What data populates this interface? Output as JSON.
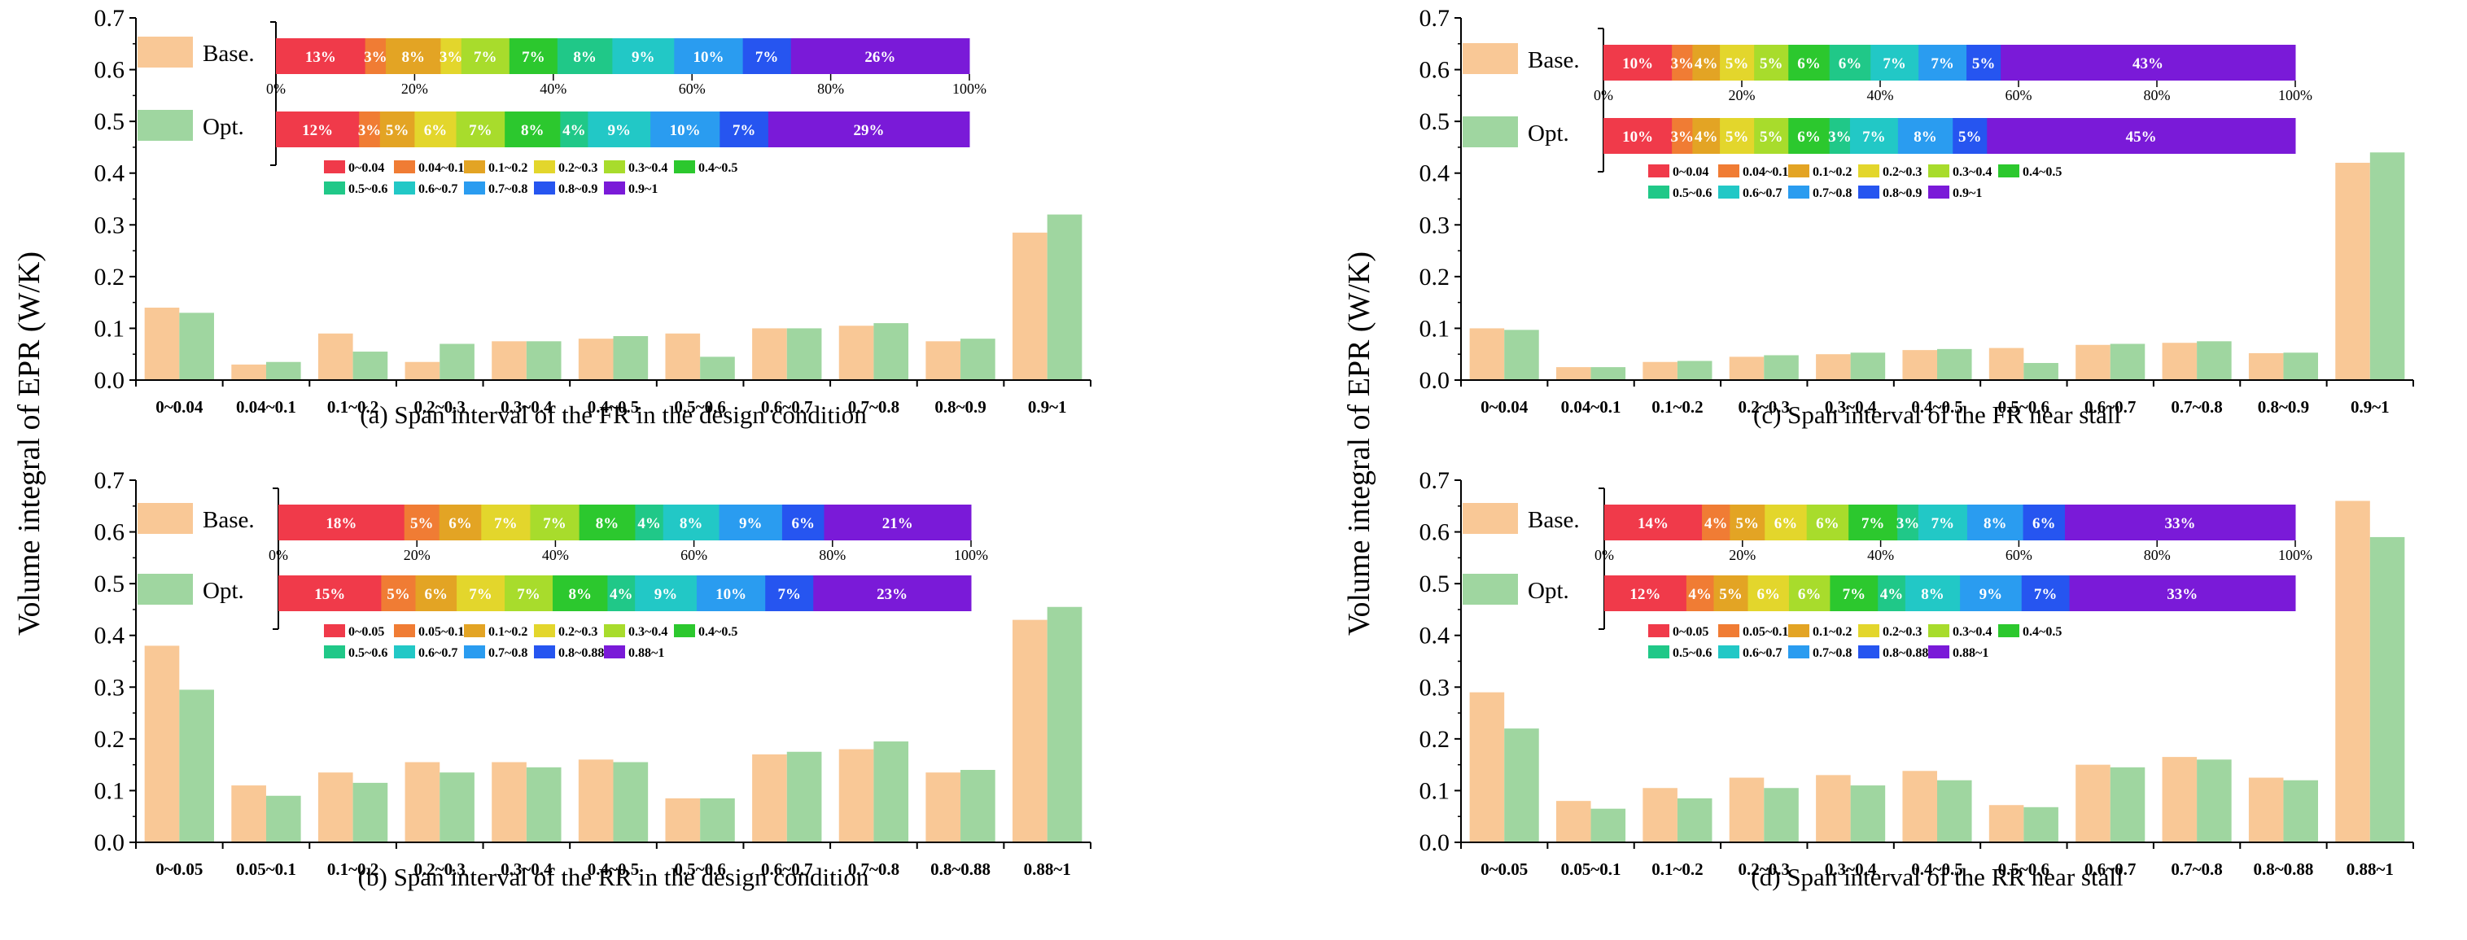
{
  "figure": {
    "ylabel": "Volume integral of EPR (W/K)",
    "legend": {
      "base_label": "Base.",
      "opt_label": "Opt."
    }
  },
  "colors": {
    "base": "#f9c896",
    "opt": "#9fd6a0",
    "segments": [
      "#f03a4a",
      "#f07c34",
      "#e3a424",
      "#e3d62c",
      "#a8dc2c",
      "#2cc82e",
      "#20c888",
      "#22c8c6",
      "#2a9cf0",
      "#2655f0",
      "#7a1ad8"
    ]
  },
  "chart_data": [
    {
      "type": "bar",
      "title": "(a) Span interval of the FR in the design condition",
      "categories": [
        "0~0.04",
        "0.04~0.1",
        "0.1~0.2",
        "0.2~0.3",
        "0.3~0.4",
        "0.4~0.5",
        "0.5~0.6",
        "0.6~0.7",
        "0.7~0.8",
        "0.8~0.9",
        "0.9~1"
      ],
      "series": [
        {
          "name": "Base.",
          "values": [
            0.14,
            0.03,
            0.09,
            0.035,
            0.075,
            0.08,
            0.09,
            0.1,
            0.105,
            0.075,
            0.285
          ]
        },
        {
          "name": "Opt.",
          "values": [
            0.13,
            0.035,
            0.055,
            0.07,
            0.075,
            0.085,
            0.045,
            0.1,
            0.11,
            0.08,
            0.32
          ]
        }
      ],
      "ylim": [
        0,
        0.7
      ],
      "yticks": [
        "0.0",
        "0.1",
        "0.2",
        "0.3",
        "0.4",
        "0.5",
        "0.6",
        "0.7"
      ],
      "stacked_bars": {
        "axis_ticks": [
          "0%",
          "20%",
          "40%",
          "60%",
          "80%",
          "100%"
        ],
        "base": {
          "values": [
            13,
            3,
            8,
            3,
            7,
            7,
            8,
            9,
            10,
            7,
            26
          ],
          "labels": [
            "13%",
            "3%",
            "8%",
            "3%",
            "7%",
            "7%",
            "8%",
            "9%",
            "10%",
            "7%",
            "26%"
          ]
        },
        "opt": {
          "values": [
            12,
            3,
            5,
            6,
            7,
            8,
            4,
            9,
            10,
            7,
            29
          ],
          "labels": [
            "12%",
            "3%",
            "5%",
            "6%",
            "7%",
            "8%",
            "4%",
            "9%",
            "10%",
            "7%",
            "29%"
          ]
        },
        "legend": [
          "0~0.04",
          "0.04~0.1",
          "0.1~0.2",
          "0.2~0.3",
          "0.3~0.4",
          "0.4~0.5",
          "0.5~0.6",
          "0.6~0.7",
          "0.7~0.8",
          "0.8~0.9",
          "0.9~1"
        ]
      }
    },
    {
      "type": "bar",
      "title": "(c) Span interval of the FR near stall",
      "categories": [
        "0~0.04",
        "0.04~0.1",
        "0.1~0.2",
        "0.2~0.3",
        "0.3~0.4",
        "0.4~0.5",
        "0.5~0.6",
        "0.6~0.7",
        "0.7~0.8",
        "0.8~0.9",
        "0.9~1"
      ],
      "series": [
        {
          "name": "Base.",
          "values": [
            0.1,
            0.025,
            0.035,
            0.045,
            0.05,
            0.058,
            0.062,
            0.068,
            0.072,
            0.052,
            0.42
          ]
        },
        {
          "name": "Opt.",
          "values": [
            0.097,
            0.025,
            0.037,
            0.048,
            0.053,
            0.06,
            0.033,
            0.07,
            0.075,
            0.053,
            0.44
          ]
        }
      ],
      "ylim": [
        0,
        0.7
      ],
      "yticks": [
        "0.0",
        "0.1",
        "0.2",
        "0.3",
        "0.4",
        "0.5",
        "0.6",
        "0.7"
      ],
      "stacked_bars": {
        "axis_ticks": [
          "0%",
          "20%",
          "40%",
          "60%",
          "80%",
          "100%"
        ],
        "base": {
          "values": [
            10,
            3,
            4,
            5,
            5,
            6,
            6,
            7,
            7,
            5,
            43
          ],
          "labels": [
            "10%",
            "3%",
            "4%",
            "5%",
            "5%",
            "6%",
            "6%",
            "7%",
            "7%",
            "5%",
            "43%"
          ]
        },
        "opt": {
          "values": [
            10,
            3,
            4,
            5,
            5,
            6,
            3,
            7,
            8,
            5,
            45
          ],
          "labels": [
            "10%",
            "3%",
            "4%",
            "5%",
            "5%",
            "6%",
            "3%",
            "7%",
            "8%",
            "5%",
            "45%"
          ]
        },
        "legend": [
          "0~0.04",
          "0.04~0.1",
          "0.1~0.2",
          "0.2~0.3",
          "0.3~0.4",
          "0.4~0.5",
          "0.5~0.6",
          "0.6~0.7",
          "0.7~0.8",
          "0.8~0.9",
          "0.9~1"
        ]
      }
    },
    {
      "type": "bar",
      "title": "(b) Span interval of the RR in the design condition",
      "categories": [
        "0~0.05",
        "0.05~0.1",
        "0.1~0.2",
        "0.2~0.3",
        "0.3~0.4",
        "0.4~0.5",
        "0.5~0.6",
        "0.6~0.7",
        "0.7~0.8",
        "0.8~0.88",
        "0.88~1"
      ],
      "series": [
        {
          "name": "Base.",
          "values": [
            0.38,
            0.11,
            0.135,
            0.155,
            0.155,
            0.16,
            0.085,
            0.17,
            0.18,
            0.135,
            0.43
          ]
        },
        {
          "name": "Opt.",
          "values": [
            0.295,
            0.09,
            0.115,
            0.135,
            0.145,
            0.155,
            0.085,
            0.175,
            0.195,
            0.14,
            0.455
          ]
        }
      ],
      "ylim": [
        0,
        0.7
      ],
      "yticks": [
        "0.0",
        "0.1",
        "0.2",
        "0.3",
        "0.4",
        "0.5",
        "0.6",
        "0.7"
      ],
      "stacked_bars": {
        "axis_ticks": [
          "0%",
          "20%",
          "40%",
          "60%",
          "80%",
          "100%"
        ],
        "base": {
          "values": [
            18,
            5,
            6,
            7,
            7,
            8,
            4,
            8,
            9,
            6,
            21
          ],
          "labels": [
            "18%",
            "5%",
            "6%",
            "7%",
            "7%",
            "8%",
            "4%",
            "8%",
            "9%",
            "6%",
            "21%"
          ]
        },
        "opt": {
          "values": [
            15,
            5,
            6,
            7,
            7,
            8,
            4,
            9,
            10,
            7,
            23
          ],
          "labels": [
            "15%",
            "5%",
            "6%",
            "7%",
            "7%",
            "8%",
            "4%",
            "9%",
            "10%",
            "7%",
            "23%"
          ]
        },
        "legend": [
          "0~0.05",
          "0.05~0.1",
          "0.1~0.2",
          "0.2~0.3",
          "0.3~0.4",
          "0.4~0.5",
          "0.5~0.6",
          "0.6~0.7",
          "0.7~0.8",
          "0.8~0.88",
          "0.88~1"
        ]
      }
    },
    {
      "type": "bar",
      "title": "(d) Span interval of the RR near stall",
      "categories": [
        "0~0.05",
        "0.05~0.1",
        "0.1~0.2",
        "0.2~0.3",
        "0.3~0.4",
        "0.4~0.5",
        "0.5~0.6",
        "0.6~0.7",
        "0.7~0.8",
        "0.8~0.88",
        "0.88~1"
      ],
      "series": [
        {
          "name": "Base.",
          "values": [
            0.29,
            0.08,
            0.105,
            0.125,
            0.13,
            0.138,
            0.072,
            0.15,
            0.165,
            0.125,
            0.66
          ]
        },
        {
          "name": "Opt.",
          "values": [
            0.22,
            0.065,
            0.085,
            0.105,
            0.11,
            0.12,
            0.068,
            0.145,
            0.16,
            0.12,
            0.59
          ]
        }
      ],
      "ylim": [
        0,
        0.7
      ],
      "yticks": [
        "0.0",
        "0.1",
        "0.2",
        "0.3",
        "0.4",
        "0.5",
        "0.6",
        "0.7"
      ],
      "stacked_bars": {
        "axis_ticks": [
          "0%",
          "20%",
          "40%",
          "60%",
          "80%",
          "100%"
        ],
        "base": {
          "values": [
            14,
            4,
            5,
            6,
            6,
            7,
            3,
            7,
            8,
            6,
            33
          ],
          "labels": [
            "14%",
            "4%",
            "5%",
            "6%",
            "6%",
            "7%",
            "3%",
            "7%",
            "8%",
            "6%",
            "33%"
          ]
        },
        "opt": {
          "values": [
            12,
            4,
            5,
            6,
            6,
            7,
            4,
            8,
            9,
            7,
            33
          ],
          "labels": [
            "12%",
            "4%",
            "5%",
            "6%",
            "6%",
            "7%",
            "4%",
            "8%",
            "9%",
            "7%",
            "33%"
          ]
        },
        "legend": [
          "0~0.05",
          "0.05~0.1",
          "0.1~0.2",
          "0.2~0.3",
          "0.3~0.4",
          "0.4~0.5",
          "0.5~0.6",
          "0.6~0.7",
          "0.7~0.8",
          "0.8~0.88",
          "0.88~1"
        ]
      }
    }
  ]
}
